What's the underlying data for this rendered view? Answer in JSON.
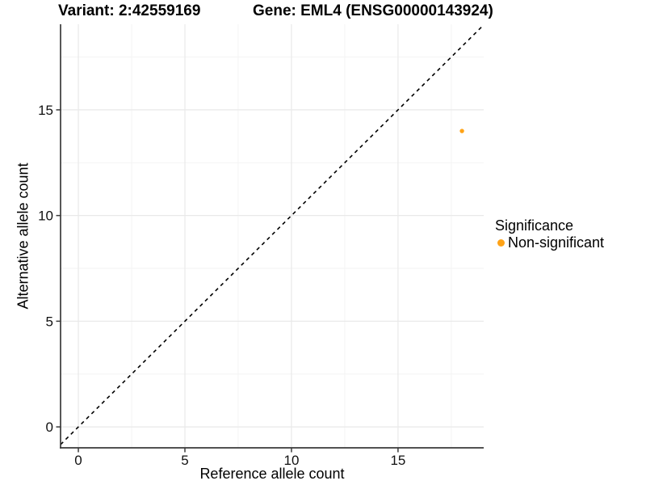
{
  "chart_data": {
    "type": "scatter",
    "titles": {
      "left": "Variant: 2:42559169",
      "right": "Gene: EML4 (ENSG00000143924)"
    },
    "xlabel": "Reference allele count",
    "ylabel": "Alternative allele count",
    "xlim": [
      -0.835,
      19.02
    ],
    "ylim": [
      -0.99,
      19.05
    ],
    "x_ticks": [
      0,
      5,
      10,
      15
    ],
    "y_ticks": [
      0,
      5,
      10,
      15
    ],
    "x_minor_ticks": [
      2.5,
      7.5,
      12.5,
      17.5
    ],
    "y_minor_ticks": [
      2.5,
      7.5,
      12.5,
      17.5
    ],
    "grid": true,
    "identity_line": {
      "type": "y=x",
      "linetype": "dashed",
      "color": "#000000"
    },
    "points": [
      {
        "x": 18,
        "y": 14,
        "series": "Non-significant",
        "color": "#FFA317",
        "radius": 2.7
      }
    ],
    "legend": {
      "title": "Significance",
      "position": "right",
      "items": [
        {
          "label": "Non-significant",
          "color": "#FFA317"
        }
      ]
    },
    "colors": {
      "grid_major": "#E9E9E9",
      "grid_minor": "#F3F3F3",
      "axis": "#3a3a3a",
      "text": "#111111",
      "background": "#ffffff"
    }
  }
}
